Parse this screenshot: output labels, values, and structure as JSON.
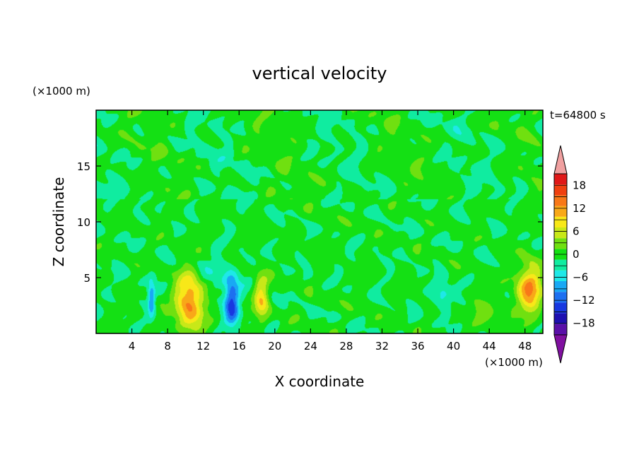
{
  "chart_data": {
    "type": "heatmap",
    "title": "vertical velocity",
    "xlabel": "X coordinate",
    "ylabel": "Z coordinate",
    "x_unit": "(×1000 m)",
    "y_unit": "(×1000 m)",
    "time_label": "t=64800 s",
    "xlim": [
      0,
      50
    ],
    "ylim": [
      0,
      20
    ],
    "xticks": [
      4,
      8,
      12,
      16,
      20,
      24,
      28,
      32,
      36,
      40,
      44,
      48
    ],
    "yticks": [
      5,
      10,
      15
    ],
    "grid": false,
    "colorbar": {
      "placement": "right",
      "ticks": [
        18,
        12,
        6,
        0,
        -6,
        -12,
        -18
      ],
      "levels": [
        -21,
        -18,
        -15,
        -12,
        -9,
        -6,
        -3,
        0,
        3,
        6,
        9,
        12,
        15,
        18,
        21
      ],
      "colors": [
        "#5a10a8",
        "#1e10b0",
        "#1838e0",
        "#1d70f0",
        "#19a8f4",
        "#1ee8e8",
        "#10eca0",
        "#14e014",
        "#70e010",
        "#c8e818",
        "#f8e818",
        "#f8a818",
        "#f87818",
        "#f04010",
        "#e01818"
      ],
      "under_color": "#8010a0",
      "over_color": "#f0a0a0"
    },
    "features": [
      {
        "x": 10.5,
        "z": 3.0,
        "sx": 1.6,
        "sz": 2.6,
        "w": 16
      },
      {
        "x": 18.5,
        "z": 3.2,
        "sx": 0.8,
        "sz": 2.0,
        "w": 10
      },
      {
        "x": 48.5,
        "z": 4.0,
        "sx": 1.4,
        "sz": 2.2,
        "w": 14
      },
      {
        "x": 15.2,
        "z": 2.8,
        "sx": 0.8,
        "sz": 2.2,
        "w": -14
      },
      {
        "x": 6.2,
        "z": 3.0,
        "sx": 0.4,
        "sz": 1.5,
        "w": -10
      },
      {
        "x": 38.8,
        "z": 3.5,
        "sx": 1.0,
        "sz": 1.2,
        "w": -6
      },
      {
        "x": 12.5,
        "z": 5.0,
        "sx": 3.0,
        "sz": 2.0,
        "w": -3
      },
      {
        "x": 44.0,
        "z": 2.0,
        "sx": 2.0,
        "sz": 1.5,
        "w": 3
      }
    ]
  }
}
